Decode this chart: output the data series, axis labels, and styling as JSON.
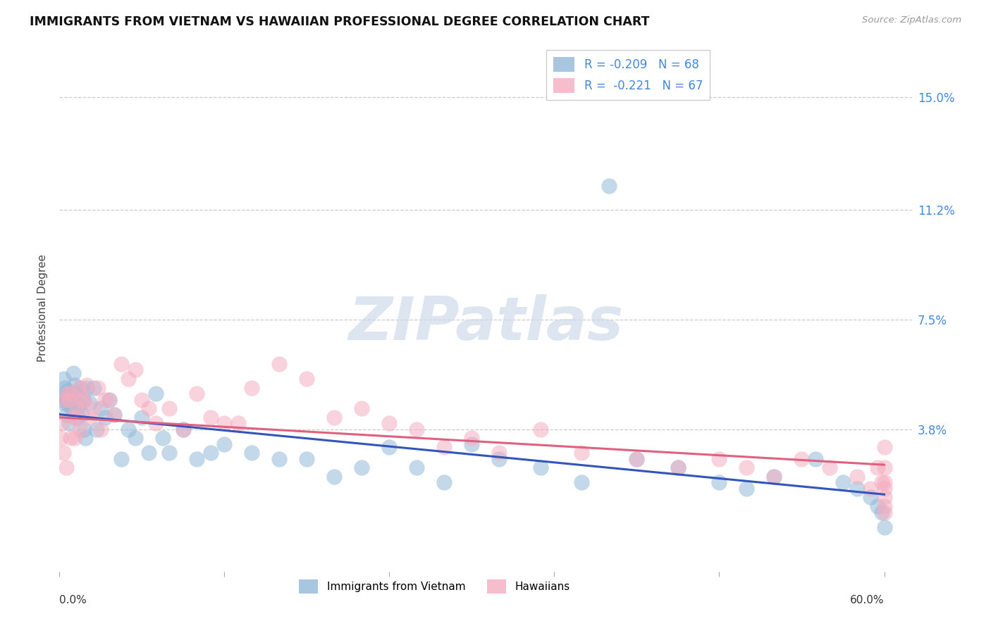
{
  "title": "IMMIGRANTS FROM VIETNAM VS HAWAIIAN PROFESSIONAL DEGREE CORRELATION CHART",
  "source": "Source: ZipAtlas.com",
  "ylabel": "Professional Degree",
  "ytick_labels": [
    "15.0%",
    "11.2%",
    "7.5%",
    "3.8%"
  ],
  "ytick_values": [
    0.15,
    0.112,
    0.075,
    0.038
  ],
  "xlim": [
    0.0,
    0.62
  ],
  "ylim": [
    -0.01,
    0.168
  ],
  "legend_entries": [
    {
      "label_r": "R = -0.209",
      "label_n": "N = 68",
      "color": "#a8c4e8"
    },
    {
      "label_r": "R =  -0.221",
      "label_n": "N = 67",
      "color": "#f4adc0"
    }
  ],
  "legend_labels_bottom": [
    "Immigrants from Vietnam",
    "Hawaiians"
  ],
  "blue_color": "#93b8d8",
  "pink_color": "#f4adc0",
  "line_blue": "#3355bb",
  "line_pink": "#e06080",
  "watermark": "ZIPatlas",
  "vietnam_x": [
    0.001,
    0.002,
    0.003,
    0.003,
    0.004,
    0.005,
    0.005,
    0.006,
    0.007,
    0.007,
    0.008,
    0.009,
    0.01,
    0.01,
    0.011,
    0.012,
    0.013,
    0.014,
    0.015,
    0.016,
    0.017,
    0.018,
    0.019,
    0.02,
    0.022,
    0.025,
    0.027,
    0.03,
    0.033,
    0.036,
    0.04,
    0.045,
    0.05,
    0.055,
    0.06,
    0.065,
    0.07,
    0.075,
    0.08,
    0.09,
    0.1,
    0.11,
    0.12,
    0.14,
    0.16,
    0.18,
    0.2,
    0.22,
    0.24,
    0.26,
    0.28,
    0.3,
    0.32,
    0.35,
    0.38,
    0.4,
    0.42,
    0.45,
    0.48,
    0.5,
    0.52,
    0.55,
    0.57,
    0.58,
    0.59,
    0.595,
    0.598,
    0.6
  ],
  "vietnam_y": [
    0.05,
    0.048,
    0.055,
    0.047,
    0.052,
    0.048,
    0.043,
    0.051,
    0.046,
    0.04,
    0.05,
    0.048,
    0.044,
    0.057,
    0.053,
    0.05,
    0.042,
    0.046,
    0.052,
    0.043,
    0.048,
    0.038,
    0.035,
    0.052,
    0.047,
    0.052,
    0.038,
    0.045,
    0.042,
    0.048,
    0.043,
    0.028,
    0.038,
    0.035,
    0.042,
    0.03,
    0.05,
    0.035,
    0.03,
    0.038,
    0.028,
    0.03,
    0.033,
    0.03,
    0.028,
    0.028,
    0.022,
    0.025,
    0.032,
    0.025,
    0.02,
    0.033,
    0.028,
    0.025,
    0.02,
    0.12,
    0.028,
    0.025,
    0.02,
    0.018,
    0.022,
    0.028,
    0.02,
    0.018,
    0.015,
    0.012,
    0.01,
    0.005
  ],
  "hawaii_x": [
    0.001,
    0.002,
    0.003,
    0.004,
    0.005,
    0.006,
    0.007,
    0.008,
    0.009,
    0.01,
    0.011,
    0.012,
    0.013,
    0.014,
    0.015,
    0.016,
    0.018,
    0.02,
    0.022,
    0.025,
    0.028,
    0.03,
    0.033,
    0.036,
    0.04,
    0.045,
    0.05,
    0.055,
    0.06,
    0.065,
    0.07,
    0.08,
    0.09,
    0.1,
    0.11,
    0.12,
    0.13,
    0.14,
    0.16,
    0.18,
    0.2,
    0.22,
    0.24,
    0.26,
    0.28,
    0.3,
    0.32,
    0.35,
    0.38,
    0.42,
    0.45,
    0.48,
    0.5,
    0.52,
    0.54,
    0.56,
    0.58,
    0.59,
    0.595,
    0.598,
    0.6,
    0.6,
    0.6,
    0.6,
    0.6,
    0.6,
    0.6
  ],
  "hawaii_y": [
    0.035,
    0.04,
    0.03,
    0.048,
    0.025,
    0.05,
    0.048,
    0.035,
    0.05,
    0.042,
    0.035,
    0.042,
    0.045,
    0.052,
    0.038,
    0.048,
    0.048,
    0.053,
    0.042,
    0.045,
    0.052,
    0.038,
    0.048,
    0.048,
    0.043,
    0.06,
    0.055,
    0.058,
    0.048,
    0.045,
    0.04,
    0.045,
    0.038,
    0.05,
    0.042,
    0.04,
    0.04,
    0.052,
    0.06,
    0.055,
    0.042,
    0.045,
    0.04,
    0.038,
    0.032,
    0.035,
    0.03,
    0.038,
    0.03,
    0.028,
    0.025,
    0.028,
    0.025,
    0.022,
    0.028,
    0.025,
    0.022,
    0.018,
    0.025,
    0.02,
    0.025,
    0.032,
    0.018,
    0.02,
    0.015,
    0.012,
    0.01
  ]
}
